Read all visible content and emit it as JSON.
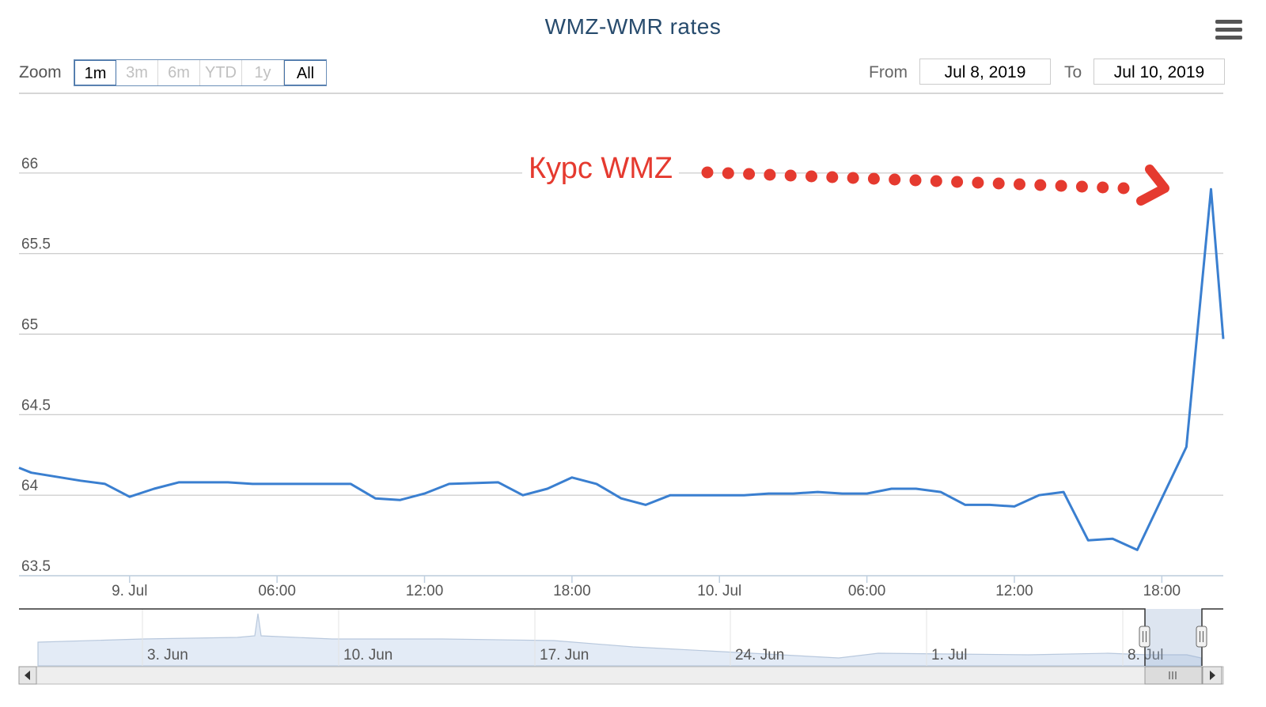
{
  "title": "WMZ-WMR rates",
  "menu_icon": "hamburger-menu-icon",
  "zoom": {
    "label": "Zoom",
    "buttons": [
      "1m",
      "3m",
      "6m",
      "YTD",
      "1y",
      "All"
    ],
    "enabled": [
      true,
      false,
      false,
      false,
      false,
      true
    ],
    "active": [
      "1m",
      "All"
    ]
  },
  "range": {
    "from_label": "From",
    "from_value": "Jul 8, 2019",
    "to_label": "To",
    "to_value": "Jul 10, 2019"
  },
  "annotation": {
    "text": "Курс WMZ",
    "color": "#e53a2f"
  },
  "chart_data": {
    "type": "line",
    "title": "WMZ-WMR rates",
    "xlabel": "",
    "ylabel": "",
    "ylim": [
      63.5,
      66.5
    ],
    "yticks": [
      "63.5",
      "64",
      "64.5",
      "65",
      "65.5",
      "66"
    ],
    "x_ticks": [
      "9. Jul",
      "06:00",
      "12:00",
      "18:00",
      "10. Jul",
      "06:00",
      "12:00",
      "18:00"
    ],
    "x_tick_hours": [
      0,
      6,
      12,
      18,
      24,
      30,
      36,
      42
    ],
    "grid": true,
    "line_color": "#3a7fd0",
    "series": [
      {
        "x": [
          -4.5,
          -4,
          -2,
          -1,
          0,
          1,
          2,
          4,
          5,
          6,
          9,
          10,
          11,
          12,
          13,
          15,
          16,
          17,
          18,
          19,
          20,
          21,
          22,
          23,
          24,
          25,
          26,
          27,
          28,
          29,
          30,
          31,
          32,
          33,
          34,
          35,
          36,
          37,
          38,
          39,
          40,
          41,
          42,
          43,
          44,
          44.5
        ],
        "y": [
          64.17,
          64.14,
          64.09,
          64.07,
          63.99,
          64.04,
          64.08,
          64.08,
          64.07,
          64.07,
          64.07,
          63.98,
          63.97,
          64.01,
          64.07,
          64.08,
          64.0,
          64.04,
          64.11,
          64.07,
          63.98,
          63.94,
          64.0,
          64.0,
          64.0,
          64.0,
          64.01,
          64.01,
          64.02,
          64.01,
          64.01,
          64.04,
          64.04,
          64.02,
          63.94,
          63.94,
          63.93,
          64.0,
          64.02,
          63.72,
          63.73,
          63.66,
          63.98,
          64.3,
          65.9,
          64.97
        ]
      }
    ],
    "navigator": {
      "x_labels": [
        "3. Jun",
        "10. Jun",
        "17. Jun",
        "24. Jun",
        "1. Jul",
        "8. Jul"
      ],
      "selected_range": [
        "Jul 8, 2019",
        "Jul 10, 2019"
      ]
    }
  }
}
